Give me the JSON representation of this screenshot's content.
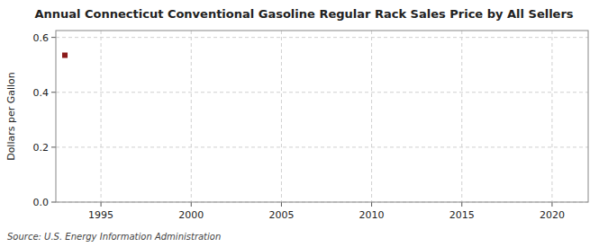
{
  "chart_data": {
    "type": "scatter",
    "title": "Annual Connecticut Conventional Gasoline Regular Rack Sales Price by All Sellers",
    "y_label": "Dollars per Gallon",
    "annotations": [
      "Source: U.S. Energy Information Administration"
    ],
    "x": [
      1993
    ],
    "values": [
      0.535
    ],
    "color": "#8b1a1a",
    "marker": "square",
    "xlim": [
      1992.5,
      2022
    ],
    "ylim": [
      0.0,
      0.625
    ],
    "xticks": [
      1995,
      2000,
      2005,
      2010,
      2015,
      2020
    ],
    "yticks": [
      {
        "value": 0.0,
        "label": "0.0"
      },
      0.2,
      0.4,
      0.6
    ],
    "grid": true
  }
}
